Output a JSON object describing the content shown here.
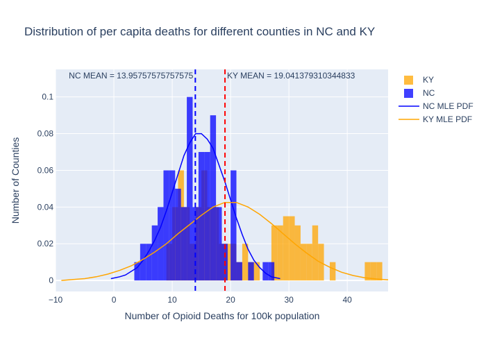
{
  "chart_data": {
    "type": "histogram",
    "title": "Distribution of per capita deaths for different counties in NC and KY",
    "xlabel": "Number of Opioid Deaths for 100k population",
    "ylabel": "Number of Counties",
    "xlim": [
      -10,
      47
    ],
    "ylim": [
      -0.006,
      0.115
    ],
    "xticks": [
      -10,
      0,
      10,
      20,
      30,
      40
    ],
    "yticks": [
      0,
      0.02,
      0.04,
      0.06,
      0.08,
      0.1
    ],
    "ytick_labels": [
      "0",
      "0.02",
      "0.04",
      "0.06",
      "0.08",
      "0.1"
    ],
    "grid": true,
    "legend_position": "top-right",
    "histograms": [
      {
        "name": "KY",
        "color": "#FFA500",
        "opacity": 0.75,
        "bins": [
          {
            "x0": 9,
            "x1": 10,
            "y": 0.02
          },
          {
            "x0": 10,
            "x1": 11,
            "y": 0.04
          },
          {
            "x0": 11,
            "x1": 12,
            "y": 0.06
          },
          {
            "x0": 12,
            "x1": 13,
            "y": 0.04
          },
          {
            "x0": 13,
            "x1": 14,
            "y": 0.02
          },
          {
            "x0": 14,
            "x1": 15,
            "y": 0.04
          },
          {
            "x0": 15,
            "x1": 16,
            "y": 0.06
          },
          {
            "x0": 16,
            "x1": 17,
            "y": 0.04
          },
          {
            "x0": 17,
            "x1": 18,
            "y": 0.04
          },
          {
            "x0": 18,
            "x1": 19,
            "y": 0.02
          },
          {
            "x0": 19,
            "x1": 20,
            "y": 0.02
          },
          {
            "x0": 20,
            "x1": 21,
            "y": 0.02
          },
          {
            "x0": 21,
            "x1": 22,
            "y": 0.01
          },
          {
            "x0": 22,
            "x1": 23,
            "y": 0.02
          },
          {
            "x0": 23,
            "x1": 24,
            "y": 0.01
          },
          {
            "x0": 24,
            "x1": 25,
            "y": 0.01
          },
          {
            "x0": 27,
            "x1": 28,
            "y": 0.03
          },
          {
            "x0": 28,
            "x1": 29,
            "y": 0.03
          },
          {
            "x0": 29,
            "x1": 30,
            "y": 0.035
          },
          {
            "x0": 30,
            "x1": 31,
            "y": 0.035
          },
          {
            "x0": 31,
            "x1": 32,
            "y": 0.03
          },
          {
            "x0": 32,
            "x1": 33,
            "y": 0.02
          },
          {
            "x0": 33,
            "x1": 34,
            "y": 0.02
          },
          {
            "x0": 34,
            "x1": 35,
            "y": 0.03
          },
          {
            "x0": 35,
            "x1": 36,
            "y": 0.02
          },
          {
            "x0": 37,
            "x1": 38,
            "y": 0.01
          },
          {
            "x0": 43,
            "x1": 44,
            "y": 0.01
          },
          {
            "x0": 44,
            "x1": 45,
            "y": 0.01
          },
          {
            "x0": 45,
            "x1": 46,
            "y": 0.01
          }
        ]
      },
      {
        "name": "NC",
        "color": "#0000FF",
        "opacity": 0.75,
        "bins": [
          {
            "x0": 3.5,
            "x1": 4.5,
            "y": 0.01
          },
          {
            "x0": 4.5,
            "x1": 5.5,
            "y": 0.02
          },
          {
            "x0": 5.5,
            "x1": 6.5,
            "y": 0.02
          },
          {
            "x0": 6.5,
            "x1": 7.5,
            "y": 0.03
          },
          {
            "x0": 7.5,
            "x1": 8.5,
            "y": 0.04
          },
          {
            "x0": 8.5,
            "x1": 9.5,
            "y": 0.06
          },
          {
            "x0": 9.5,
            "x1": 10.5,
            "y": 0.06
          },
          {
            "x0": 10.5,
            "x1": 11.5,
            "y": 0.05
          },
          {
            "x0": 11.5,
            "x1": 12.5,
            "y": 0.04
          },
          {
            "x0": 12.5,
            "x1": 13.5,
            "y": 0.1
          },
          {
            "x0": 13.5,
            "x1": 14.5,
            "y": 0.04
          },
          {
            "x0": 14.5,
            "x1": 15.5,
            "y": 0.07
          },
          {
            "x0": 15.5,
            "x1": 16.5,
            "y": 0.07
          },
          {
            "x0": 16.5,
            "x1": 17.5,
            "y": 0.09
          },
          {
            "x0": 17.5,
            "x1": 18.5,
            "y": 0.04
          },
          {
            "x0": 18.5,
            "x1": 19.5,
            "y": 0.02
          },
          {
            "x0": 20.0,
            "x1": 21.0,
            "y": 0.06
          },
          {
            "x0": 21.0,
            "x1": 22.0,
            "y": 0.01
          },
          {
            "x0": 23.0,
            "x1": 24.0,
            "y": 0.01
          },
          {
            "x0": 25.5,
            "x1": 26.5,
            "y": 0.01
          },
          {
            "x0": 26.5,
            "x1": 27.5,
            "y": 0.01
          }
        ]
      }
    ],
    "lines": [
      {
        "name": "NC MLE PDF",
        "color": "#0000FF",
        "x": [
          -0.5,
          1,
          2,
          3,
          4,
          5,
          6,
          7,
          8,
          9,
          10,
          11,
          12,
          13,
          14,
          15,
          16,
          17,
          18,
          19,
          20,
          21,
          22,
          23,
          24,
          25,
          26,
          27,
          28.5
        ],
        "y": [
          0.001,
          0.002,
          0.003,
          0.005,
          0.007,
          0.011,
          0.016,
          0.022,
          0.029,
          0.038,
          0.048,
          0.058,
          0.068,
          0.075,
          0.08,
          0.08,
          0.077,
          0.072,
          0.063,
          0.054,
          0.044,
          0.034,
          0.025,
          0.017,
          0.011,
          0.007,
          0.004,
          0.002,
          0.001
        ]
      },
      {
        "name": "KY MLE PDF",
        "color": "#FFA500",
        "x": [
          -9,
          -7,
          -5,
          -3,
          -1,
          1,
          3,
          5,
          7,
          9,
          11,
          13,
          15,
          17,
          19,
          21,
          23,
          25,
          27,
          29,
          31,
          33,
          35,
          37,
          39,
          41,
          43,
          45,
          47
        ],
        "y": [
          0.0,
          0.0005,
          0.001,
          0.002,
          0.0035,
          0.0055,
          0.008,
          0.0115,
          0.0155,
          0.02,
          0.0255,
          0.0305,
          0.0355,
          0.04,
          0.0425,
          0.0425,
          0.04,
          0.036,
          0.031,
          0.0255,
          0.02,
          0.015,
          0.0105,
          0.0072,
          0.0045,
          0.0027,
          0.0015,
          0.0008,
          0.0003
        ]
      }
    ],
    "vlines": [
      {
        "x": 13.957575757575757,
        "color": "#0000FF",
        "dash": true,
        "label": "NC MEAN = 13.95757575757575"
      },
      {
        "x": 19.041379310344833,
        "color": "#FF0000",
        "dash": true,
        "label": "KY MEAN = 19.041379310344833"
      }
    ],
    "legend": [
      {
        "label": "KY",
        "kind": "box",
        "color": "#FFA500"
      },
      {
        "label": "NC",
        "kind": "box",
        "color": "#0000FF"
      },
      {
        "label": "NC MLE PDF",
        "kind": "line",
        "color": "#0000FF"
      },
      {
        "label": "KY MLE PDF",
        "kind": "line",
        "color": "#FFA500"
      }
    ]
  }
}
